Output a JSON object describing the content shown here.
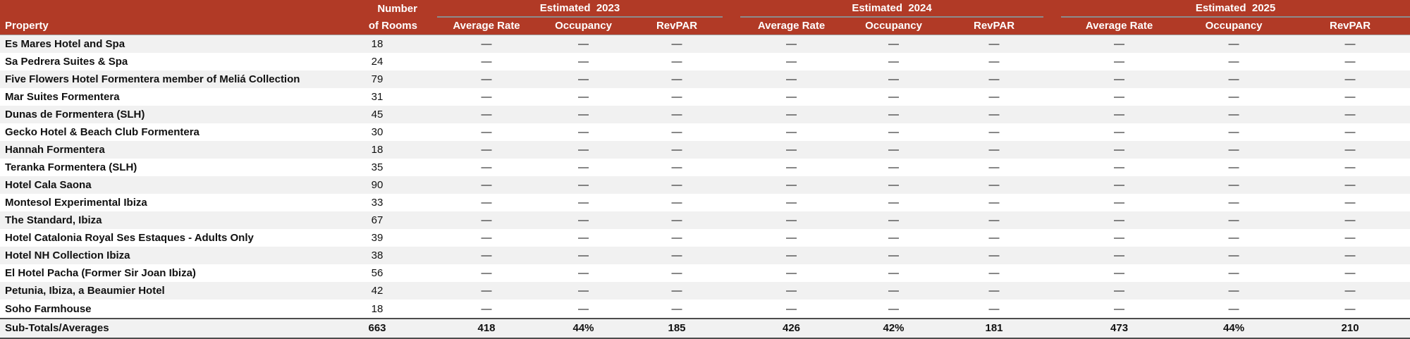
{
  "colors": {
    "header_bg": "#B13A26",
    "group_underline": "#8C8C8C",
    "header_rule": "#A0A0A0",
    "stripe": "#F1F1F1",
    "total_rule": "#4D4D4D"
  },
  "table": {
    "header": {
      "property": "Property",
      "rooms_top": "Number",
      "rooms_bottom": "of Rooms",
      "year_groups": [
        {
          "title": "Estimated  2023",
          "columns": [
            "Average Rate",
            "Occupancy",
            "RevPAR"
          ]
        },
        {
          "title": "Estimated  2024",
          "columns": [
            "Average Rate",
            "Occupancy",
            "RevPAR"
          ]
        },
        {
          "title": "Estimated  2025",
          "columns": [
            "Average Rate",
            "Occupancy",
            "RevPAR"
          ]
        }
      ]
    },
    "rows": [
      {
        "property": "Es Mares Hotel and Spa",
        "rooms": "18",
        "values": [
          "—",
          "—",
          "—",
          "—",
          "—",
          "—",
          "—",
          "—",
          "—"
        ]
      },
      {
        "property": "Sa Pedrera Suites & Spa",
        "rooms": "24",
        "values": [
          "—",
          "—",
          "—",
          "—",
          "—",
          "—",
          "—",
          "—",
          "—"
        ]
      },
      {
        "property": "Five Flowers Hotel Formentera member of Meliá Collection",
        "rooms": "79",
        "values": [
          "—",
          "—",
          "—",
          "—",
          "—",
          "—",
          "—",
          "—",
          "—"
        ]
      },
      {
        "property": "Mar Suites Formentera",
        "rooms": "31",
        "values": [
          "—",
          "—",
          "—",
          "—",
          "—",
          "—",
          "—",
          "—",
          "—"
        ]
      },
      {
        "property": "Dunas de Formentera (SLH)",
        "rooms": "45",
        "values": [
          "—",
          "—",
          "—",
          "—",
          "—",
          "—",
          "—",
          "—",
          "—"
        ]
      },
      {
        "property": "Gecko Hotel & Beach Club Formentera",
        "rooms": "30",
        "values": [
          "—",
          "—",
          "—",
          "—",
          "—",
          "—",
          "—",
          "—",
          "—"
        ]
      },
      {
        "property": "Hannah Formentera",
        "rooms": "18",
        "values": [
          "—",
          "—",
          "—",
          "—",
          "—",
          "—",
          "—",
          "—",
          "—"
        ]
      },
      {
        "property": "Teranka Formentera (SLH)",
        "rooms": "35",
        "values": [
          "—",
          "—",
          "—",
          "—",
          "—",
          "—",
          "—",
          "—",
          "—"
        ]
      },
      {
        "property": "Hotel Cala Saona",
        "rooms": "90",
        "values": [
          "—",
          "—",
          "—",
          "—",
          "—",
          "—",
          "—",
          "—",
          "—"
        ]
      },
      {
        "property": "Montesol Experimental Ibiza",
        "rooms": "33",
        "values": [
          "—",
          "—",
          "—",
          "—",
          "—",
          "—",
          "—",
          "—",
          "—"
        ]
      },
      {
        "property": "The Standard, Ibiza",
        "rooms": "67",
        "values": [
          "—",
          "—",
          "—",
          "—",
          "—",
          "—",
          "—",
          "—",
          "—"
        ]
      },
      {
        "property": "Hotel Catalonia Royal Ses Estaques - Adults Only",
        "rooms": "39",
        "values": [
          "—",
          "—",
          "—",
          "—",
          "—",
          "—",
          "—",
          "—",
          "—"
        ]
      },
      {
        "property": "Hotel NH Collection Ibiza",
        "rooms": "38",
        "values": [
          "—",
          "—",
          "—",
          "—",
          "—",
          "—",
          "—",
          "—",
          "—"
        ]
      },
      {
        "property": "El Hotel Pacha (Former Sir Joan Ibiza)",
        "rooms": "56",
        "values": [
          "—",
          "—",
          "—",
          "—",
          "—",
          "—",
          "—",
          "—",
          "—"
        ]
      },
      {
        "property": "Petunia, Ibiza, a Beaumier Hotel",
        "rooms": "42",
        "values": [
          "—",
          "—",
          "—",
          "—",
          "—",
          "—",
          "—",
          "—",
          "—"
        ]
      },
      {
        "property": "Soho Farmhouse",
        "rooms": "18",
        "values": [
          "—",
          "—",
          "—",
          "—",
          "—",
          "—",
          "—",
          "—",
          "—"
        ]
      }
    ],
    "subtotal": {
      "property": "Sub-Totals/Averages",
      "rooms": "663",
      "values": [
        "418",
        "44%",
        "185",
        "426",
        "42%",
        "181",
        "473",
        "44%",
        "210"
      ]
    }
  }
}
